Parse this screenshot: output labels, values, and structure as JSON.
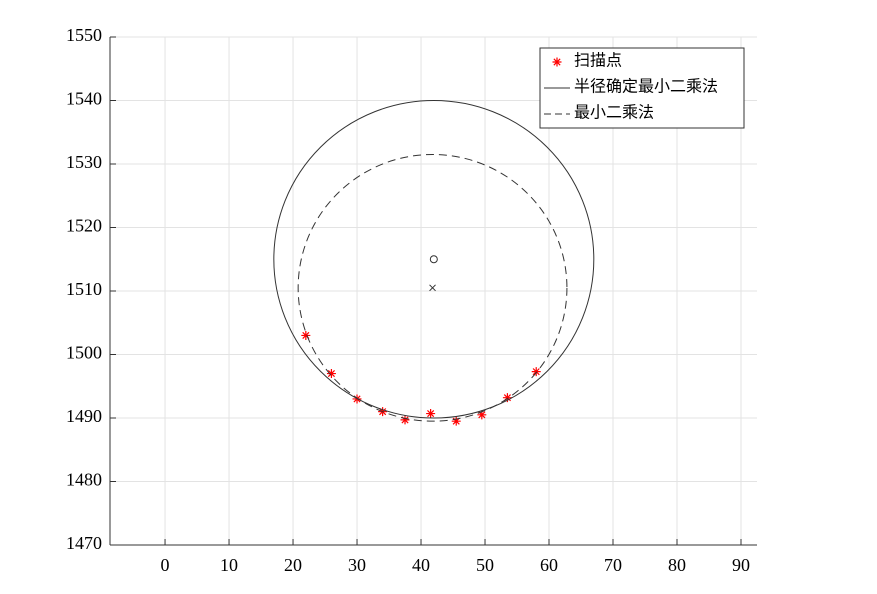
{
  "chart_data": {
    "type": "scatter",
    "xlim": [
      -8.6,
      92.5
    ],
    "ylim": [
      1470,
      1550
    ],
    "xticks": [
      0,
      10,
      20,
      30,
      40,
      50,
      60,
      70,
      80,
      90
    ],
    "yticks": [
      1470,
      1480,
      1490,
      1500,
      1510,
      1520,
      1530,
      1540,
      1550
    ],
    "grid": true,
    "legend": "top-right",
    "series": [
      {
        "name": "扫描点",
        "color": "#ff0000",
        "marker": "*",
        "x": [
          22,
          26,
          30,
          34,
          37.5,
          41.5,
          45.5,
          49.5,
          53.5,
          58
        ],
        "values": [
          1503,
          1497,
          1493,
          1491,
          1489.7,
          1490.7,
          1489.5,
          1490.5,
          1493.2,
          1497.3
        ]
      },
      {
        "name": "半径确定最小二乘法",
        "color": "#333333",
        "dash": "solid",
        "center_marker": "o",
        "cx": 42,
        "cy": 1515,
        "r": 25
      },
      {
        "name": "最小二乘法",
        "color": "#333333",
        "dash": "dashed",
        "center_marker": "x",
        "cx": 41.8,
        "cy": 1510.5,
        "r": 21
      }
    ]
  }
}
